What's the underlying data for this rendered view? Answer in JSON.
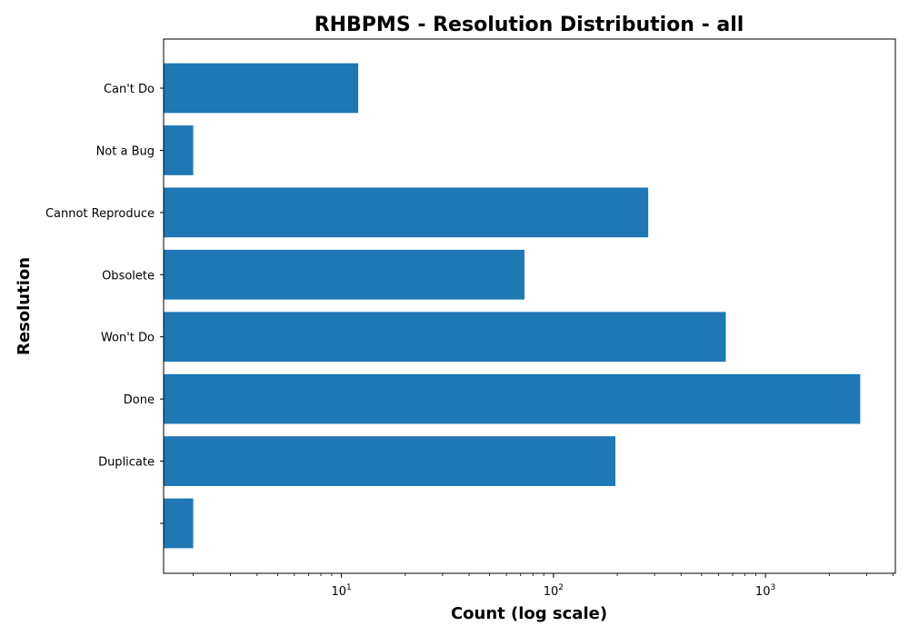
{
  "chart_data": {
    "type": "bar",
    "orientation": "horizontal",
    "title": "RHBPMS - Resolution Distribution - all",
    "xlabel": "Count (log scale)",
    "ylabel": "Resolution",
    "x_scale": "log",
    "xlim": [
      1.45,
      4100
    ],
    "grid": false,
    "color": "#1f77b4",
    "categories": [
      "",
      "Duplicate",
      "Done",
      "Won't Do",
      "Obsolete",
      "Cannot Reproduce",
      "Not a Bug",
      "Can't Do"
    ],
    "values": [
      2,
      196,
      2800,
      650,
      73,
      280,
      2,
      12
    ],
    "x_ticks": [
      {
        "base": "10",
        "exp": "1",
        "value": 10
      },
      {
        "base": "10",
        "exp": "2",
        "value": 100
      },
      {
        "base": "10",
        "exp": "3",
        "value": 1000
      }
    ]
  }
}
